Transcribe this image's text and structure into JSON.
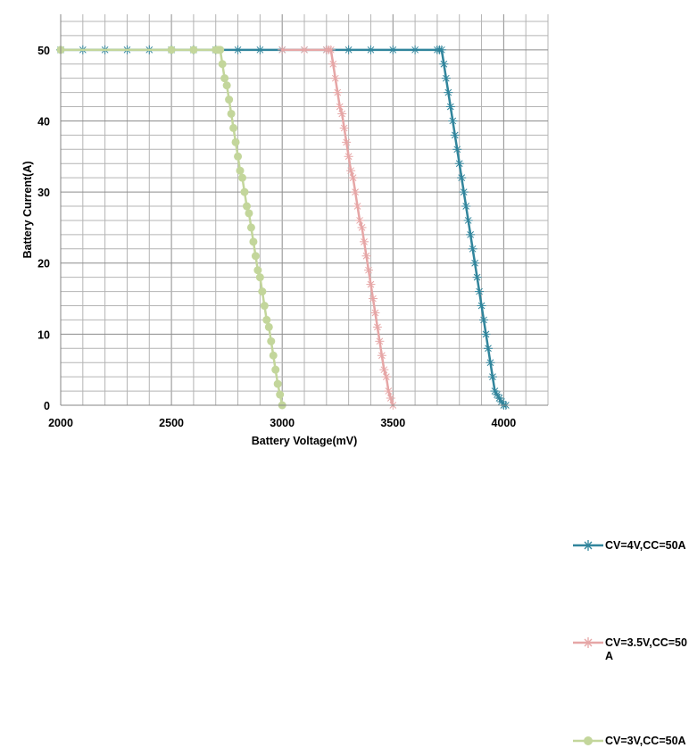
{
  "chart_data": {
    "type": "line",
    "title": "",
    "xlabel": "Battery Voltage(mV)",
    "ylabel": "Battery  Current(A)",
    "xlim": [
      2000,
      4200
    ],
    "ylim": [
      0,
      55
    ],
    "x_ticks": [
      2000,
      2500,
      3000,
      3500,
      4000
    ],
    "x_tick_labels": [
      "2000",
      "2500",
      "3000",
      "3500",
      "4000"
    ],
    "y_ticks": [
      0,
      10,
      20,
      30,
      40,
      50
    ],
    "y_tick_labels": [
      "0",
      "10",
      "20",
      "30",
      "40",
      "50"
    ],
    "x_minor_step": 100,
    "y_minor_step": 2,
    "grid": true,
    "legend_position": "right",
    "series": [
      {
        "name": "CV=4V,CC=50A",
        "color": "#31859c",
        "marker": "asterisk",
        "x": [
          2000,
          2100,
          2200,
          2300,
          2400,
          2500,
          2600,
          2700,
          2800,
          2900,
          3000,
          3100,
          3200,
          3300,
          3400,
          3500,
          3600,
          3700,
          3710,
          3720,
          3730,
          3740,
          3750,
          3760,
          3770,
          3780,
          3790,
          3800,
          3810,
          3820,
          3830,
          3840,
          3850,
          3860,
          3870,
          3880,
          3890,
          3900,
          3910,
          3920,
          3930,
          3940,
          3950,
          3960,
          3970,
          3980,
          3990,
          4000,
          4010
        ],
        "y": [
          50,
          50,
          50,
          50,
          50,
          50,
          50,
          50,
          50,
          50,
          50,
          50,
          50,
          50,
          50,
          50,
          50,
          50,
          50,
          50,
          48,
          46,
          44,
          42,
          40,
          38,
          36,
          34,
          32,
          30,
          28,
          26,
          24,
          22,
          20,
          18,
          16,
          14,
          12,
          10,
          8,
          6,
          4,
          2,
          1.5,
          1,
          0.5,
          0,
          0
        ]
      },
      {
        "name": "CV=3.5V,CC=50A",
        "color": "#e6a6a6",
        "marker": "asterisk",
        "x": [
          3000,
          3100,
          3200,
          3210,
          3220,
          3230,
          3240,
          3250,
          3260,
          3270,
          3280,
          3290,
          3300,
          3310,
          3320,
          3330,
          3340,
          3350,
          3360,
          3370,
          3380,
          3390,
          3400,
          3410,
          3420,
          3430,
          3440,
          3450,
          3460,
          3470,
          3480,
          3490,
          3500
        ],
        "y": [
          50,
          50,
          50,
          50,
          50,
          48,
          46,
          44,
          42,
          41,
          39,
          37,
          35,
          33,
          32,
          30,
          28,
          26,
          25,
          23,
          21,
          19,
          17,
          15,
          13,
          11,
          9,
          7,
          5,
          4,
          2,
          1,
          0
        ]
      },
      {
        "name": "CV=3V,CC=50A",
        "color": "#c3d69b",
        "marker": "circle",
        "x": [
          2000,
          2500,
          2600,
          2700,
          2710,
          2720,
          2730,
          2740,
          2750,
          2760,
          2770,
          2780,
          2790,
          2800,
          2810,
          2820,
          2830,
          2840,
          2850,
          2860,
          2870,
          2880,
          2890,
          2900,
          2910,
          2920,
          2930,
          2940,
          2950,
          2960,
          2970,
          2980,
          2990,
          3000
        ],
        "y": [
          50,
          50,
          50,
          50,
          50,
          50,
          48,
          46,
          45,
          43,
          41,
          39,
          37,
          35,
          33,
          32,
          30,
          28,
          27,
          25,
          23,
          21,
          19,
          18,
          16,
          14,
          12,
          11,
          9,
          7,
          5,
          3,
          1.5,
          0
        ]
      }
    ]
  },
  "legend": {
    "items": [
      {
        "label": "CV=4V,CC=50A"
      },
      {
        "label": "CV=3.5V,CC=50A"
      },
      {
        "label": "CV=3V,CC=50A"
      }
    ]
  }
}
